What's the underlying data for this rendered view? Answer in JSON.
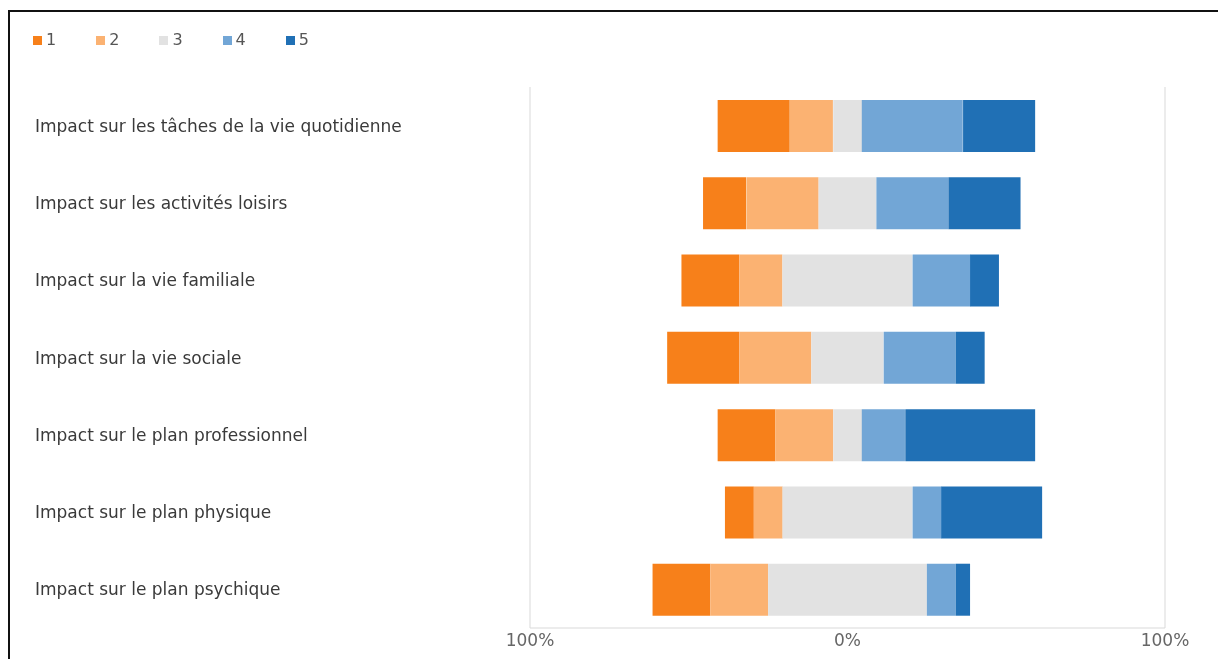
{
  "chart_data": {
    "type": "bar",
    "orientation": "horizontal",
    "legend": "top left",
    "categories": [
      "Impact sur les tâches de la vie quotidienne",
      "Impact sur les activités loisirs",
      "Impact sur la vie familiale",
      "Impact sur la vie sociale",
      "Impact sur le plan professionnel",
      "Impact sur le plan physique",
      "Impact sur le plan psychique"
    ],
    "series": [
      {
        "name": "1",
        "color": "#f7801a",
        "values": [
          22.7,
          13.6,
          18.2,
          22.7,
          18.2,
          9.1,
          18.2
        ],
        "base": [
          -40.9,
          -45.5,
          -52.3,
          -56.8,
          -40.9,
          -38.6,
          -61.4
        ]
      },
      {
        "name": "2",
        "color": "#fbb272",
        "values": [
          13.6,
          22.7,
          13.6,
          22.7,
          18.2,
          9.1,
          18.2
        ],
        "base": [
          -18.2,
          -31.8,
          -34.1,
          -34.1,
          -22.7,
          -29.5,
          -43.2
        ]
      },
      {
        "name": "3",
        "color": "#e2e2e2",
        "values": [
          9.1,
          18.2,
          40.9,
          22.7,
          9.1,
          40.9,
          50
        ],
        "base": [
          -4.5,
          -9.1,
          -20.5,
          -11.4,
          -4.5,
          -20.5,
          -25
        ]
      },
      {
        "name": "4",
        "color": "#72a6d6",
        "values": [
          31.8,
          22.7,
          18.2,
          22.7,
          13.6,
          9.1,
          9.1
        ],
        "base": [
          4.5,
          9.1,
          20.5,
          11.4,
          4.5,
          20.5,
          25
        ]
      },
      {
        "name": "5",
        "color": "#2070b5",
        "values": [
          22.7,
          22.7,
          9.1,
          9.1,
          40.9,
          31.8,
          4.5
        ],
        "base": [
          36.4,
          31.8,
          38.6,
          34.1,
          18.2,
          29.5,
          34.1
        ]
      }
    ],
    "xlim": [
      -100,
      100
    ],
    "xticks": [
      {
        "value": -100,
        "label": "100%"
      },
      {
        "value": 0,
        "label": "0%"
      },
      {
        "value": 100,
        "label": "100%"
      }
    ]
  }
}
